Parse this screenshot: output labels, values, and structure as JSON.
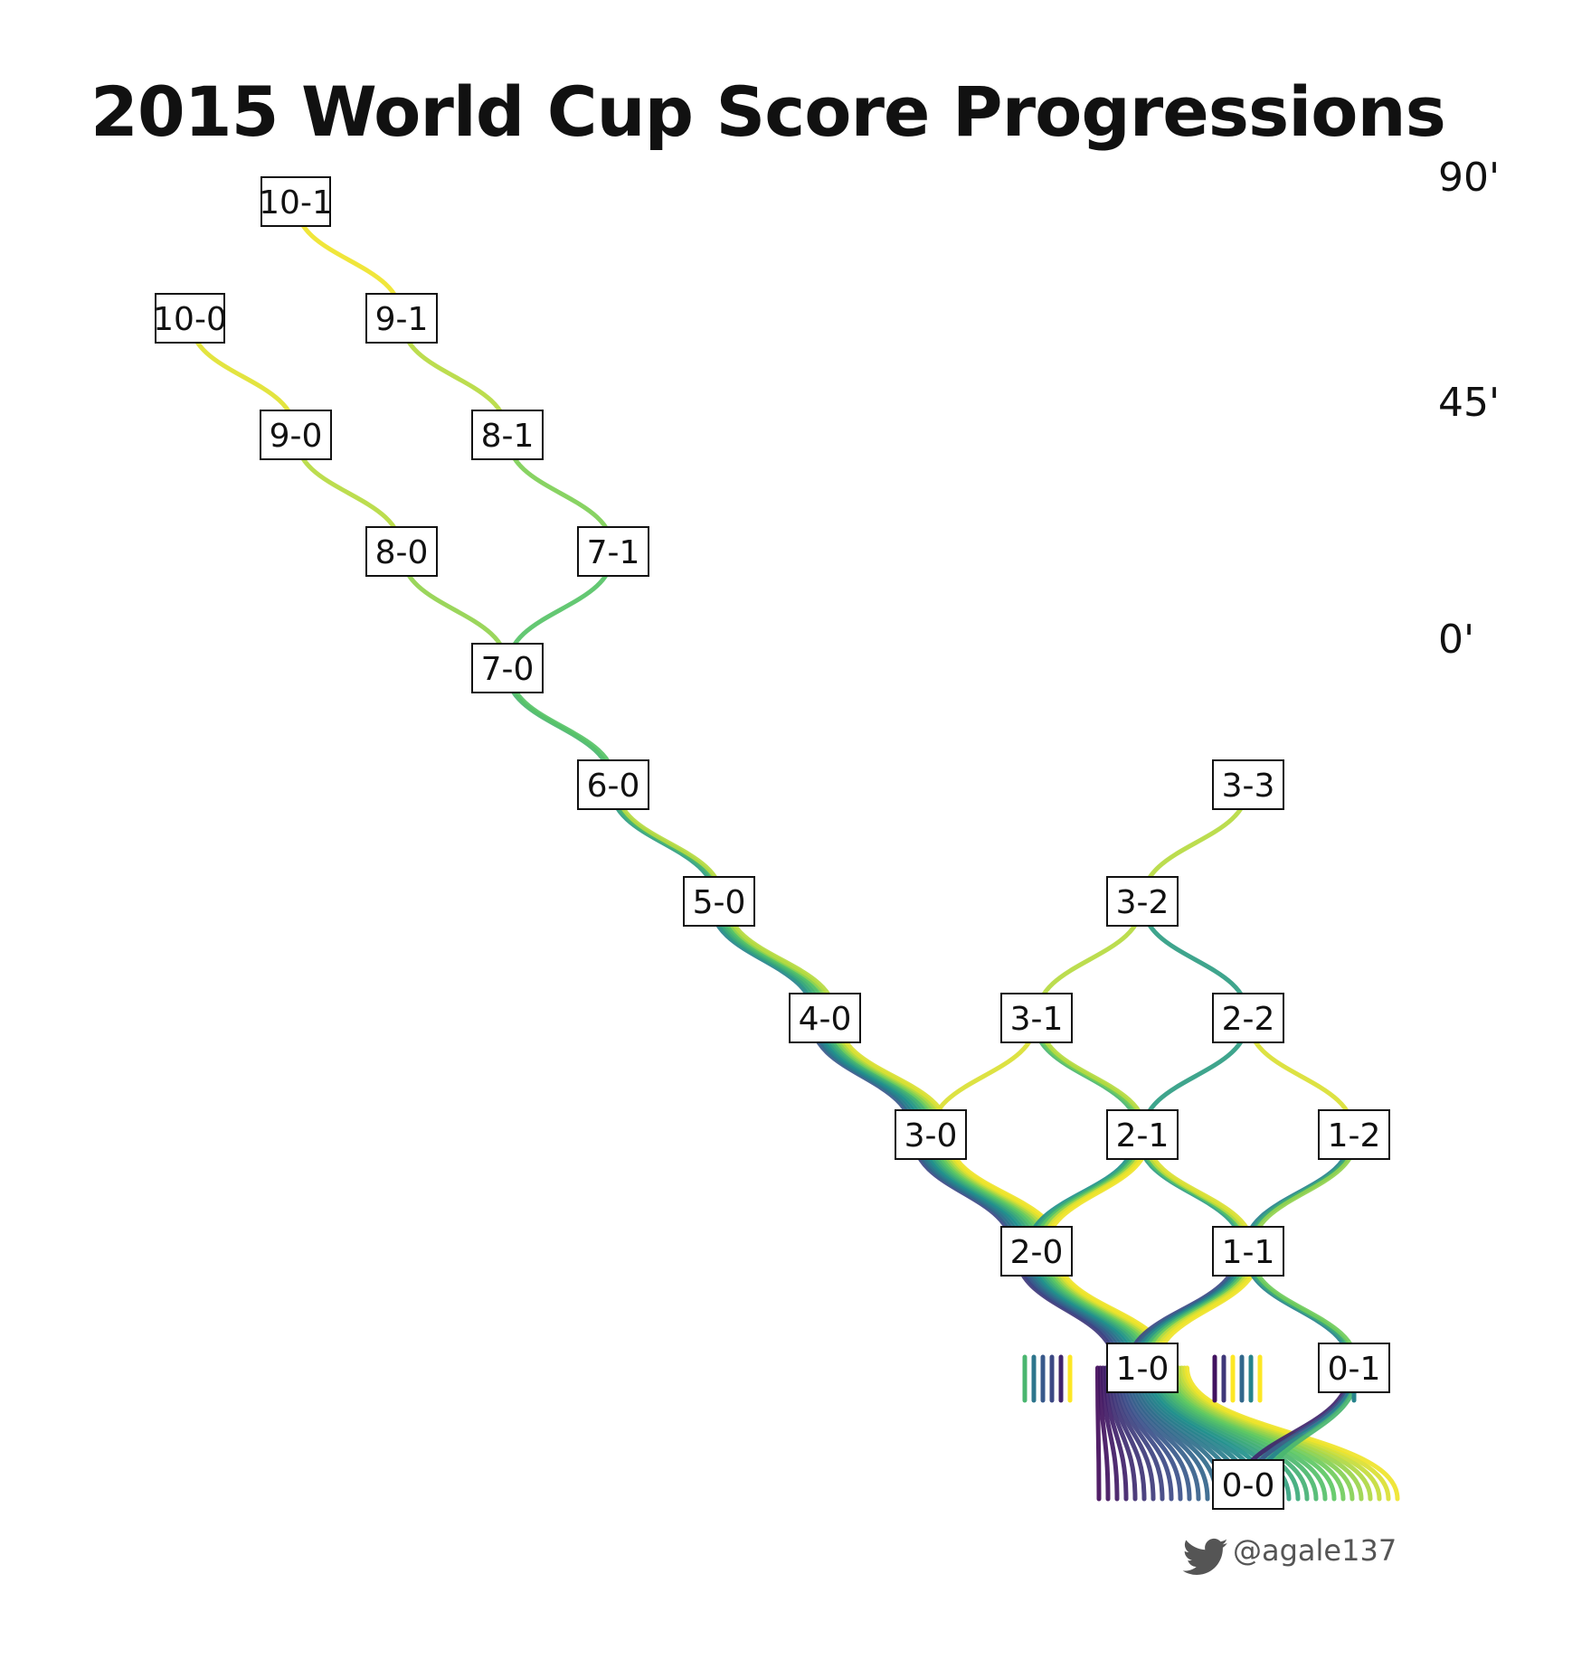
{
  "title": "2015 World Cup Score Progressions",
  "credit": {
    "handle": "@agale137",
    "icon": "twitter-bird-icon"
  },
  "chart_data": {
    "type": "score-progression-tree",
    "title": "2015 World Cup Score Progressions",
    "colormap": "viridis",
    "colors": [
      "#440154",
      "#3b528b",
      "#21918c",
      "#5ec962",
      "#fde725"
    ],
    "colorbar": {
      "min": 0,
      "max": 90,
      "labels": [
        "90'",
        "45'",
        "0'"
      ],
      "placement": "right"
    },
    "nodes": [
      "0-0",
      "0-1",
      "1-0",
      "1-1",
      "2-0",
      "1-2",
      "2-1",
      "3-0",
      "2-2",
      "3-1",
      "4-0",
      "3-2",
      "5-0",
      "3-3",
      "6-0",
      "7-0",
      "7-1",
      "8-0",
      "8-1",
      "9-0",
      "9-1",
      "10-0",
      "10-1"
    ],
    "transitions": [
      {
        "from": "0-0",
        "to": "1-0",
        "minutes": [
          3,
          5,
          7,
          9,
          12,
          14,
          16,
          18,
          20,
          22,
          25,
          27,
          29,
          31,
          33,
          36,
          38,
          40,
          42,
          45,
          48,
          52,
          55,
          58,
          61,
          64,
          67,
          70,
          73,
          76,
          79,
          82,
          85,
          88
        ]
      },
      {
        "from": "0-0",
        "to": "0-1",
        "minutes": [
          10,
          25,
          40,
          60
        ]
      },
      {
        "from": "1-0",
        "to": "2-0",
        "minutes": [
          15,
          20,
          25,
          30,
          35,
          40,
          45,
          50,
          55,
          60,
          65,
          70,
          75,
          80,
          85,
          88
        ]
      },
      {
        "from": "1-0",
        "to": "1-1",
        "minutes": [
          20,
          30,
          40,
          50,
          60,
          70,
          80,
          85,
          88
        ]
      },
      {
        "from": "0-1",
        "to": "1-1",
        "minutes": [
          40,
          55,
          70
        ]
      },
      {
        "from": "1-1",
        "to": "2-1",
        "minutes": [
          50,
          65,
          80,
          85
        ]
      },
      {
        "from": "1-1",
        "to": "1-2",
        "minutes": [
          40,
          55,
          75
        ]
      },
      {
        "from": "2-0",
        "to": "3-0",
        "minutes": [
          20,
          30,
          35,
          40,
          45,
          50,
          55,
          60,
          65,
          70,
          75,
          80,
          85,
          88
        ]
      },
      {
        "from": "2-0",
        "to": "2-1",
        "minutes": [
          45,
          55,
          65,
          75,
          85,
          88
        ]
      },
      {
        "from": "2-1",
        "to": "3-1",
        "minutes": [
          60,
          70,
          80
        ]
      },
      {
        "from": "2-1",
        "to": "2-2",
        "minutes": [
          50
        ]
      },
      {
        "from": "1-2",
        "to": "2-2",
        "minutes": [
          85
        ]
      },
      {
        "from": "3-0",
        "to": "4-0",
        "minutes": [
          25,
          35,
          40,
          45,
          50,
          55,
          60,
          70,
          75,
          80,
          85
        ]
      },
      {
        "from": "3-0",
        "to": "3-1",
        "minutes": [
          85
        ]
      },
      {
        "from": "3-1",
        "to": "3-2",
        "minutes": [
          80
        ]
      },
      {
        "from": "2-2",
        "to": "3-2",
        "minutes": [
          50
        ]
      },
      {
        "from": "3-2",
        "to": "3-3",
        "minutes": [
          80
        ]
      },
      {
        "from": "4-0",
        "to": "5-0",
        "minutes": [
          40,
          50,
          55,
          60,
          65,
          75,
          80
        ]
      },
      {
        "from": "5-0",
        "to": "6-0",
        "minutes": [
          50,
          60,
          80
        ]
      },
      {
        "from": "6-0",
        "to": "7-0",
        "minutes": [
          60,
          65
        ]
      },
      {
        "from": "7-0",
        "to": "8-0",
        "minutes": [
          75
        ]
      },
      {
        "from": "7-0",
        "to": "7-1",
        "minutes": [
          65
        ]
      },
      {
        "from": "8-0",
        "to": "9-0",
        "minutes": [
          80
        ]
      },
      {
        "from": "7-1",
        "to": "8-1",
        "minutes": [
          72
        ]
      },
      {
        "from": "9-0",
        "to": "10-0",
        "minutes": [
          86
        ]
      },
      {
        "from": "8-1",
        "to": "9-1",
        "minutes": [
          80
        ]
      },
      {
        "from": "9-1",
        "to": "10-1",
        "minutes": [
          88
        ]
      }
    ],
    "final_scores": {
      "1-0": [
        90,
        5,
        10,
        15,
        20,
        90,
        25,
        30,
        35,
        40,
        60,
        90
      ],
      "0-1": [
        40
      ]
    }
  }
}
